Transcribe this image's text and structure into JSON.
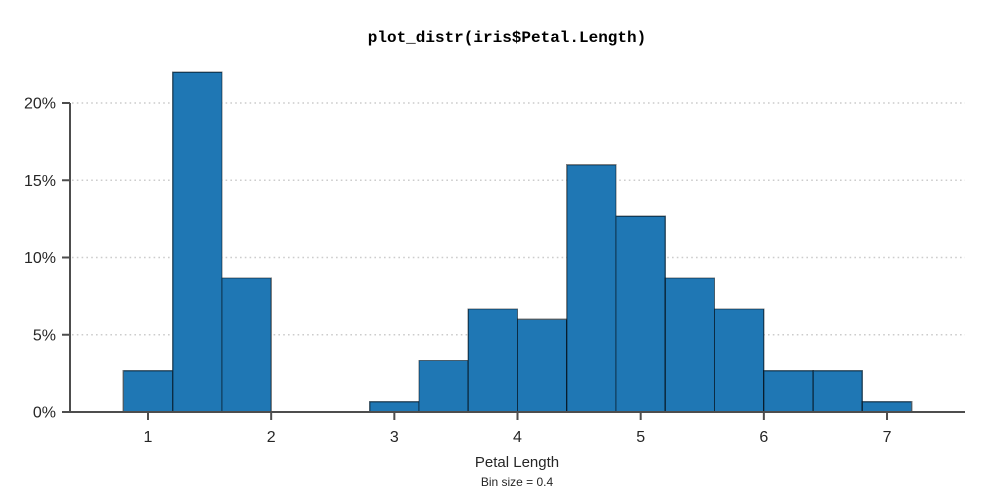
{
  "chart_data": {
    "type": "bar",
    "variant": "histogram",
    "title": "plot_distr(iris$Petal.Length)",
    "xlabel": "Petal Length",
    "subtitle": "Bin size = 0.4",
    "ylabel": "",
    "bin_size": 0.4,
    "legend": "none",
    "grid": "horizontal-dotted",
    "xlim": [
      0.37,
      7.63
    ],
    "ylim": [
      0,
      22.5
    ],
    "x_ticks": [
      1,
      2,
      3,
      4,
      5,
      6,
      7
    ],
    "y_ticks": [
      {
        "value": 0,
        "label": "0%"
      },
      {
        "value": 5,
        "label": "5%"
      },
      {
        "value": 10,
        "label": "10%"
      },
      {
        "value": 15,
        "label": "15%"
      },
      {
        "value": 20,
        "label": "20%"
      }
    ],
    "bins": [
      {
        "start": 0.8,
        "end": 1.2,
        "percent": 2.67
      },
      {
        "start": 1.2,
        "end": 1.6,
        "percent": 22.0
      },
      {
        "start": 1.6,
        "end": 2.0,
        "percent": 8.67
      },
      {
        "start": 2.8,
        "end": 3.2,
        "percent": 0.67
      },
      {
        "start": 3.2,
        "end": 3.6,
        "percent": 3.33
      },
      {
        "start": 3.6,
        "end": 4.0,
        "percent": 6.67
      },
      {
        "start": 4.0,
        "end": 4.4,
        "percent": 6.0
      },
      {
        "start": 4.4,
        "end": 4.8,
        "percent": 16.0
      },
      {
        "start": 4.8,
        "end": 5.2,
        "percent": 12.67
      },
      {
        "start": 5.2,
        "end": 5.6,
        "percent": 8.67
      },
      {
        "start": 5.6,
        "end": 6.0,
        "percent": 6.67
      },
      {
        "start": 6.0,
        "end": 6.4,
        "percent": 2.67
      },
      {
        "start": 6.4,
        "end": 6.8,
        "percent": 2.67
      },
      {
        "start": 6.8,
        "end": 7.2,
        "percent": 0.67
      }
    ],
    "colors": {
      "bar_fill": "#1f77b4",
      "bar_edge": "rgba(0,0,0,0.5)",
      "axis": "#4d4d4d",
      "grid": "#cccccc",
      "text": "#262626"
    }
  }
}
